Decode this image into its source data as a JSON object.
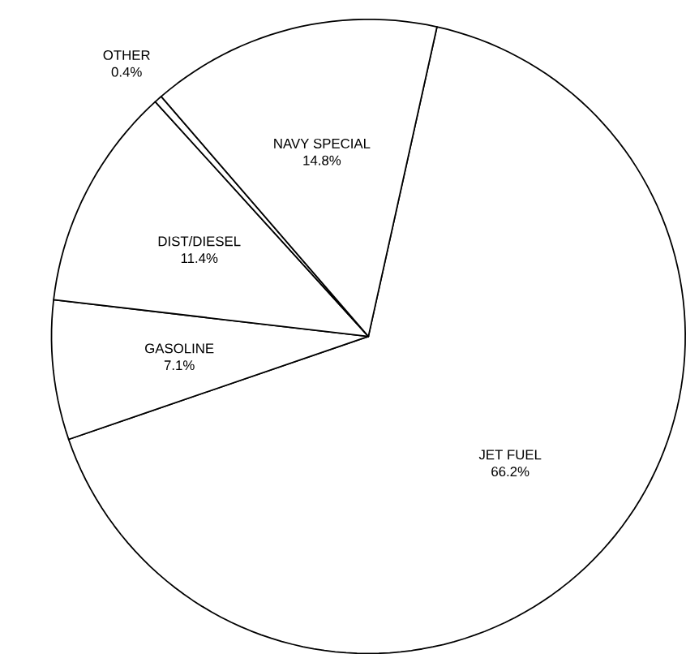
{
  "chart_data": {
    "type": "pie",
    "categories": [
      "JET FUEL",
      "GASOLINE",
      "DIST/DIESEL",
      "OTHER",
      "NAVY SPECIAL"
    ],
    "values": [
      66.2,
      7.1,
      11.4,
      0.4,
      14.8
    ],
    "value_labels": [
      "66.2%",
      "7.1%",
      "11.4%",
      "0.4%",
      "14.8%"
    ],
    "colors": [
      "#ffffff",
      "#ffffff",
      "#ffffff",
      "#ffffff",
      "#ffffff"
    ]
  }
}
